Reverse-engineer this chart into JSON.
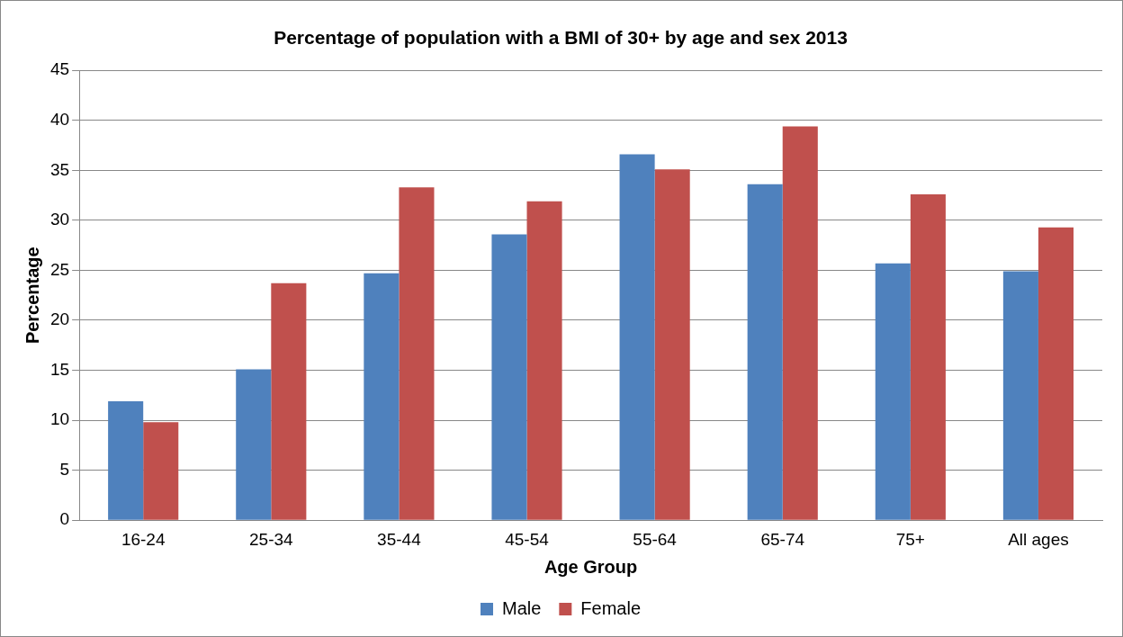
{
  "chart_data": {
    "type": "bar",
    "title": "Percentage of population with a BMI of 30+ by age and sex 2013",
    "xlabel": "Age Group",
    "ylabel": "Percentage",
    "categories": [
      "16-24",
      "25-34",
      "35-44",
      "45-54",
      "55-64",
      "65-74",
      "75+",
      "All ages"
    ],
    "series": [
      {
        "name": "Male",
        "color": "#4f81bd",
        "values": [
          11.9,
          15.1,
          24.7,
          28.6,
          36.6,
          33.6,
          25.7,
          24.9
        ]
      },
      {
        "name": "Female",
        "color": "#c0504d",
        "values": [
          9.8,
          23.7,
          33.3,
          31.9,
          35.1,
          39.4,
          32.6,
          29.3
        ]
      }
    ],
    "ylim": [
      0,
      45
    ],
    "yticks": [
      0,
      5,
      10,
      15,
      20,
      25,
      30,
      35,
      40,
      45
    ],
    "grid": "y",
    "legend": "bottom"
  }
}
